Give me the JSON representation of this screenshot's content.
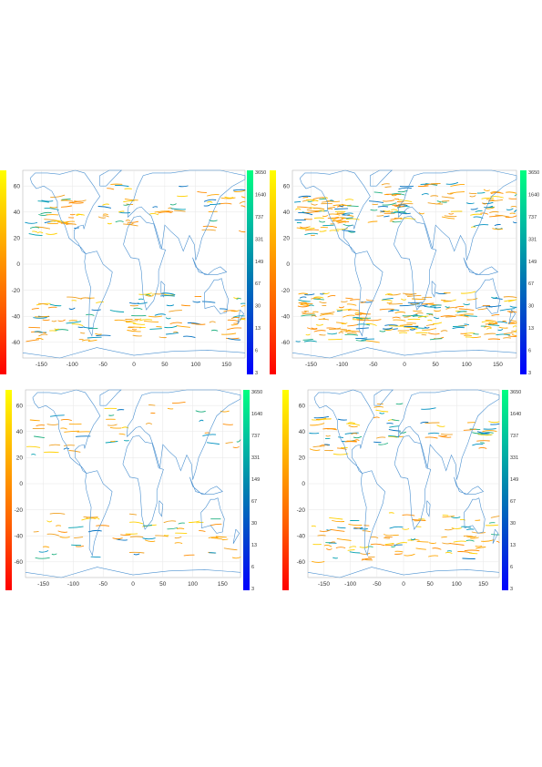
{
  "chart_data": [
    {
      "type": "map",
      "xlim": [
        -180,
        180
      ],
      "ylim": [
        -72,
        72
      ],
      "x_ticks": [
        -150,
        -100,
        -50,
        0,
        50,
        100,
        150
      ],
      "y_ticks": [
        60,
        40,
        20,
        0,
        -20,
        -40,
        -60
      ],
      "left_colorbar_ticks": [],
      "right_colorbar_ticks": [
        "3650",
        "1640",
        "737",
        "331",
        "149",
        "67",
        "30",
        "13",
        "6",
        "3"
      ],
      "density": 0.35
    },
    {
      "type": "map",
      "xlim": [
        -180,
        180
      ],
      "ylim": [
        -72,
        72
      ],
      "x_ticks": [
        -150,
        -100,
        -50,
        0,
        50,
        100,
        150
      ],
      "y_ticks": [
        60,
        40,
        20,
        0,
        -20,
        -40,
        -60
      ],
      "left_colorbar_ticks": [],
      "right_colorbar_ticks": [
        "3650",
        "1640",
        "737",
        "331",
        "149",
        "67",
        "30",
        "13",
        "6",
        "3"
      ],
      "density": 0.7
    },
    {
      "type": "map",
      "xlim": [
        -180,
        180
      ],
      "ylim": [
        -72,
        72
      ],
      "x_ticks": [
        -150,
        -100,
        -50,
        0,
        50,
        100,
        150
      ],
      "y_ticks": [
        60,
        40,
        20,
        0,
        -20,
        -40,
        -60
      ],
      "left_colorbar_ticks": [],
      "right_colorbar_ticks": [
        "3650",
        "1640",
        "737",
        "331",
        "149",
        "67",
        "30",
        "13",
        "6",
        "3"
      ],
      "density": 0.18
    },
    {
      "type": "map",
      "xlim": [
        -180,
        180
      ],
      "ylim": [
        -72,
        72
      ],
      "x_ticks": [
        -150,
        -100,
        -50,
        0,
        50,
        100,
        150
      ],
      "y_ticks": [
        60,
        40,
        20,
        0,
        -20,
        -40,
        -60
      ],
      "left_colorbar_ticks": [],
      "right_colorbar_ticks": [
        "3650",
        "1640",
        "737",
        "331",
        "149",
        "67",
        "30",
        "13",
        "6",
        "3"
      ],
      "density": 0.3
    }
  ],
  "colors": {
    "coast": "#4a90d0",
    "grid": "#e6e6e6",
    "warm": [
      "#ffd000",
      "#ffa500",
      "#ff8c00",
      "#f0a020"
    ],
    "cool": [
      "#00a0b0",
      "#0090c0",
      "#20b080",
      "#0070c0"
    ]
  }
}
